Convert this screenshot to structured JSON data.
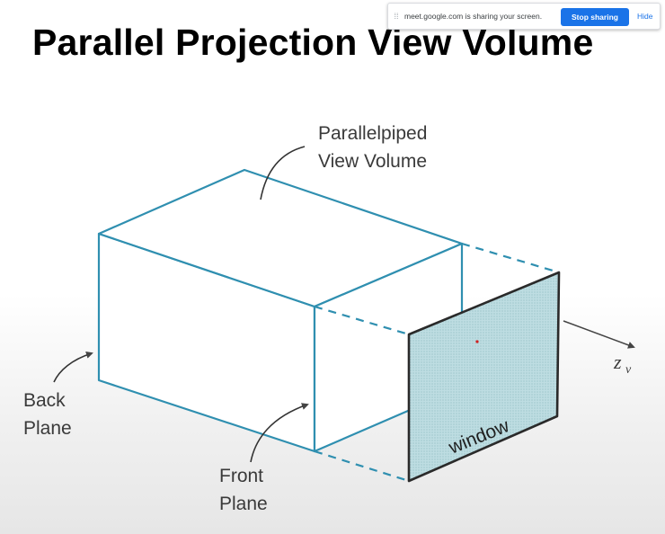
{
  "slide": {
    "title": "Parallel Projection View Volume"
  },
  "share_bar": {
    "drag_icon": "drag-handle-icon",
    "message": "meet.google.com is sharing your screen.",
    "stop_label": "Stop sharing",
    "hide_label": "Hide",
    "accent": "#1a73e8"
  },
  "diagram": {
    "volume_label_line1": "Parallelpiped",
    "volume_label_line2": "View Volume",
    "back_label_line1": "Back",
    "back_label_line2": "Plane",
    "front_label_line1": "Front",
    "front_label_line2": "Plane",
    "window_label": "window",
    "axis_label": "z",
    "axis_subscript": "v",
    "edge_color": "#2f8fb0",
    "window_fill": "#b9d9df",
    "window_border": "#2a2a2a"
  }
}
